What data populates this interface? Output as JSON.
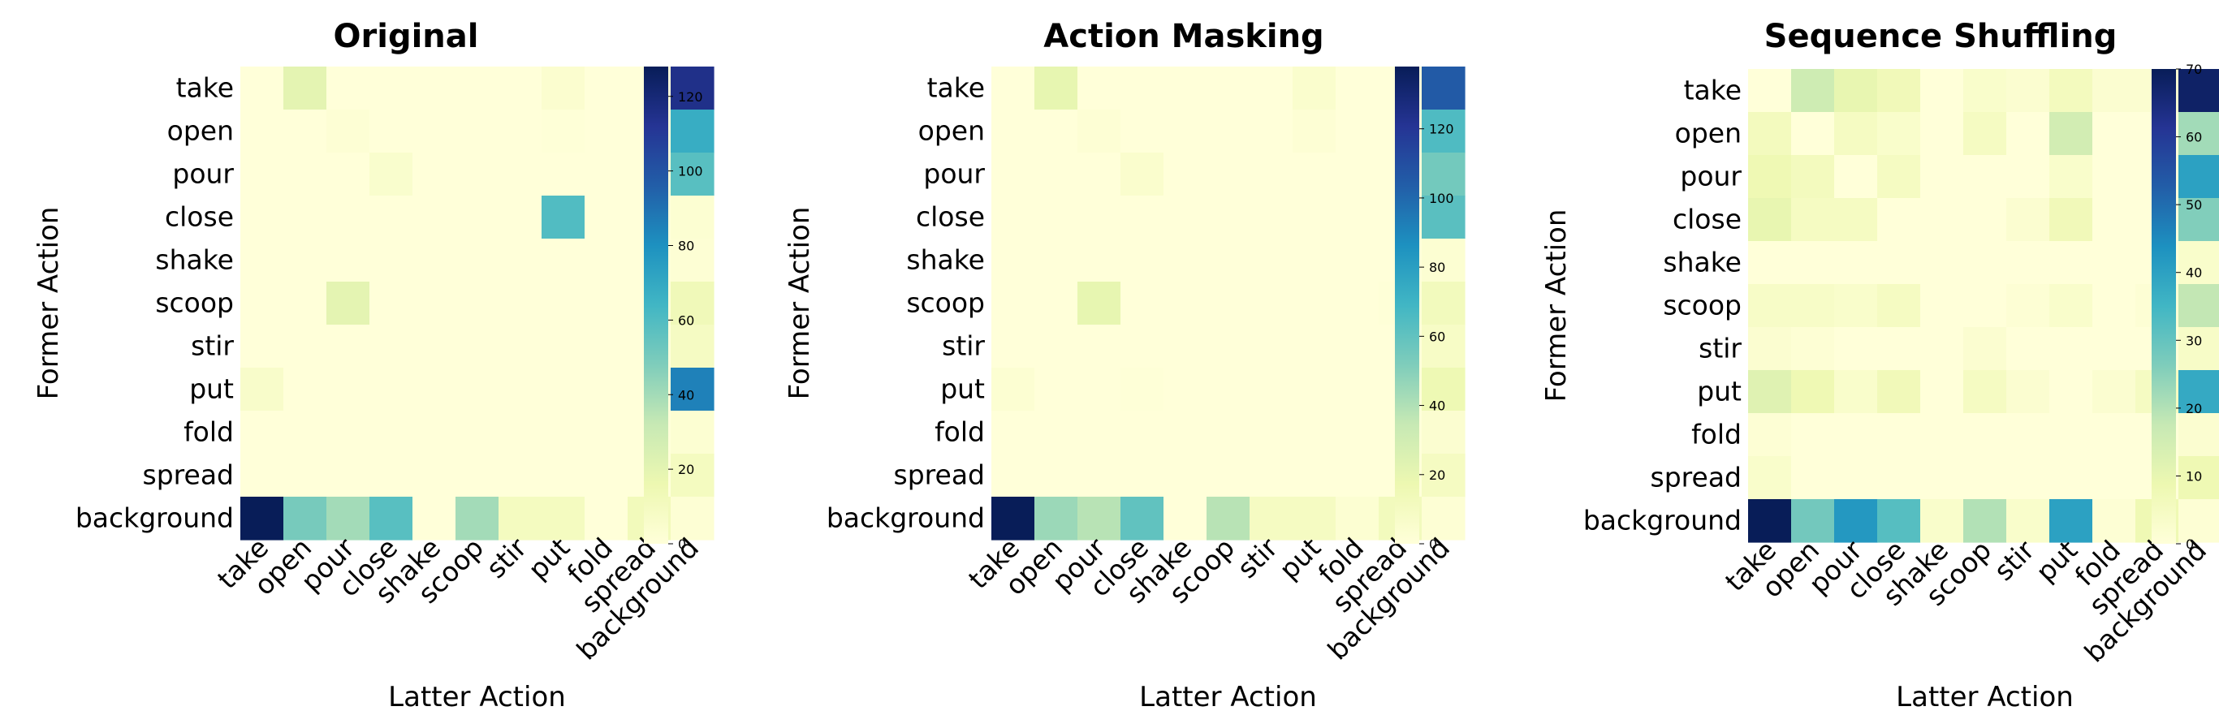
{
  "chart_data": [
    {
      "type": "heatmap",
      "title": "Original",
      "xlabel": "Latter Action",
      "ylabel": "Former Action",
      "x": [
        "take",
        "open",
        "pour",
        "close",
        "shake",
        "scoop",
        "stir",
        "put",
        "fold",
        "spread",
        "background"
      ],
      "y": [
        "take",
        "open",
        "pour",
        "close",
        "shake",
        "scoop",
        "stir",
        "put",
        "fold",
        "spread",
        "background"
      ],
      "colorbar": {
        "min": 0,
        "max": 128,
        "ticks": [
          0,
          20,
          40,
          60,
          80,
          100,
          120
        ]
      },
      "values": [
        [
          0,
          20,
          0,
          0,
          0,
          0,
          0,
          4,
          0,
          0,
          115
        ],
        [
          0,
          0,
          2,
          0,
          0,
          0,
          0,
          1,
          0,
          0,
          68
        ],
        [
          0,
          0,
          0,
          5,
          0,
          0,
          0,
          0,
          0,
          0,
          58
        ],
        [
          0,
          0,
          0,
          0,
          0,
          0,
          0,
          60,
          0,
          0,
          3
        ],
        [
          0,
          0,
          0,
          0,
          0,
          0,
          0,
          0,
          0,
          0,
          2
        ],
        [
          0,
          0,
          20,
          0,
          0,
          0,
          0,
          0,
          0,
          0,
          13
        ],
        [
          0,
          0,
          0,
          0,
          0,
          0,
          0,
          0,
          0,
          0,
          9
        ],
        [
          6,
          0,
          0,
          0,
          0,
          0,
          0,
          0,
          0,
          0,
          85
        ],
        [
          0,
          0,
          0,
          0,
          0,
          0,
          0,
          0,
          0,
          0,
          3
        ],
        [
          0,
          0,
          0,
          0,
          0,
          0,
          0,
          0,
          0,
          0,
          10
        ],
        [
          128,
          50,
          40,
          58,
          0,
          40,
          10,
          10,
          0,
          12,
          2
        ]
      ]
    },
    {
      "type": "heatmap",
      "title": "Action Masking",
      "xlabel": "Latter Action",
      "ylabel": "Former Action",
      "x": [
        "take",
        "open",
        "pour",
        "close",
        "shake",
        "scoop",
        "stir",
        "put",
        "fold",
        "spread",
        "background"
      ],
      "y": [
        "take",
        "open",
        "pour",
        "close",
        "shake",
        "scoop",
        "stir",
        "put",
        "fold",
        "spread",
        "background"
      ],
      "colorbar": {
        "min": 0,
        "max": 138,
        "ticks": [
          0,
          20,
          40,
          60,
          80,
          100,
          120
        ]
      },
      "values": [
        [
          0,
          20,
          0,
          0,
          0,
          0,
          0,
          5,
          0,
          0,
          105
        ],
        [
          0,
          0,
          2,
          0,
          0,
          0,
          0,
          2,
          0,
          0,
          65
        ],
        [
          0,
          0,
          0,
          5,
          0,
          0,
          0,
          0,
          0,
          0,
          55
        ],
        [
          0,
          0,
          0,
          0,
          0,
          0,
          0,
          0,
          0,
          0,
          62
        ],
        [
          0,
          0,
          0,
          0,
          0,
          0,
          0,
          0,
          0,
          0,
          3
        ],
        [
          0,
          0,
          20,
          0,
          0,
          0,
          0,
          0,
          0,
          1,
          12
        ],
        [
          0,
          0,
          0,
          0,
          0,
          0,
          0,
          0,
          0,
          0,
          8
        ],
        [
          3,
          0,
          0,
          1,
          0,
          0,
          0,
          0,
          0,
          0,
          16
        ],
        [
          0,
          0,
          0,
          0,
          0,
          0,
          0,
          0,
          0,
          0,
          4
        ],
        [
          0,
          0,
          0,
          0,
          0,
          0,
          0,
          0,
          0,
          0,
          10
        ],
        [
          138,
          45,
          38,
          60,
          0,
          38,
          10,
          10,
          3,
          12,
          2
        ]
      ]
    },
    {
      "type": "heatmap",
      "title": "Sequence Shuffling",
      "xlabel": "Latter Action",
      "ylabel": "Former Action",
      "x": [
        "take",
        "open",
        "pour",
        "close",
        "shake",
        "scoop",
        "stir",
        "put",
        "fold",
        "spread",
        "background"
      ],
      "y": [
        "take",
        "open",
        "pour",
        "close",
        "shake",
        "scoop",
        "stir",
        "put",
        "fold",
        "spread",
        "background"
      ],
      "colorbar": {
        "min": 0,
        "max": 70,
        "ticks": [
          0,
          10,
          20,
          30,
          40,
          50,
          60,
          70
        ]
      },
      "values": [
        [
          0,
          16,
          10,
          7,
          0,
          3,
          2,
          6,
          2,
          2,
          68
        ],
        [
          6,
          0,
          5,
          3,
          0,
          5,
          0,
          15,
          0,
          0,
          22
        ],
        [
          8,
          6,
          0,
          5,
          0,
          0,
          0,
          3,
          0,
          0,
          40
        ],
        [
          10,
          5,
          5,
          0,
          0,
          0,
          2,
          7,
          0,
          0,
          26
        ],
        [
          0,
          0,
          0,
          0,
          0,
          0,
          0,
          0,
          0,
          0,
          3
        ],
        [
          4,
          4,
          3,
          5,
          0,
          0,
          1,
          3,
          0,
          1,
          18
        ],
        [
          2,
          1,
          0,
          0,
          0,
          2,
          0,
          0,
          0,
          0,
          4
        ],
        [
          12,
          8,
          3,
          7,
          0,
          5,
          2,
          0,
          2,
          5,
          38
        ],
        [
          1,
          0,
          0,
          0,
          0,
          0,
          0,
          0,
          0,
          0,
          2
        ],
        [
          3,
          0,
          0,
          0,
          0,
          0,
          0,
          0,
          0,
          0,
          8
        ],
        [
          70,
          28,
          42,
          32,
          3,
          20,
          3,
          40,
          1,
          8,
          1
        ]
      ]
    }
  ],
  "colors": {
    "scale": [
      "#ffffd9",
      "#edf8b1",
      "#c7e9b4",
      "#7fcdbb",
      "#41b6c4",
      "#1d91c0",
      "#225ea8",
      "#253494",
      "#081d58"
    ]
  }
}
